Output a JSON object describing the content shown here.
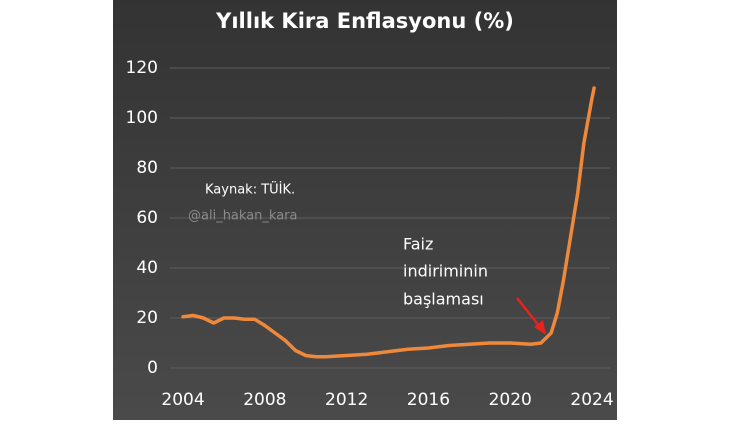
{
  "chart_data": {
    "type": "line",
    "title": "Yıllık Kira Enflasyonu (%)",
    "annotations": [
      "Kaynak: TÜİK.",
      "@ali_hakan_kara",
      "Faiz",
      "indiriminin",
      "başlaması"
    ],
    "x": [
      2004,
      2004.5,
      2005,
      2005.5,
      2006,
      2006.5,
      2007,
      2007.5,
      2008,
      2008.5,
      2009,
      2009.5,
      2010,
      2010.5,
      2011,
      2012,
      2013,
      2014,
      2015,
      2016,
      2017,
      2018,
      2019,
      2020,
      2021,
      2021.5,
      2022,
      2022.3,
      2022.6,
      2023,
      2023.3,
      2023.6,
      2024,
      2024.1
    ],
    "series": [
      {
        "name": "Yıllık Kira Enflasyonu",
        "color": "#f0883a",
        "values": [
          20.5,
          21,
          20,
          18,
          20,
          20,
          19.5,
          19.5,
          17,
          14,
          11,
          7,
          5,
          4.5,
          4.5,
          5,
          5.5,
          6.5,
          7.5,
          8,
          9,
          9.5,
          10,
          10,
          9.5,
          10,
          14,
          22,
          35,
          55,
          70,
          90,
          108,
          112
        ]
      }
    ],
    "xlim": [
      2003.5,
      2025
    ],
    "xticks": [
      2004,
      2008,
      2012,
      2016,
      2020,
      2024
    ],
    "ylim": [
      0,
      120
    ],
    "yticks": [
      0,
      20,
      40,
      60,
      80,
      100,
      120
    ],
    "grid": true
  }
}
